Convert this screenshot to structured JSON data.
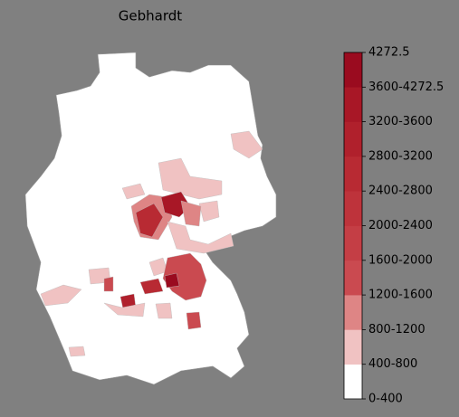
{
  "title": "Gebhardt",
  "legend": {
    "labels": [
      "0-400",
      "400-800",
      "800-1200",
      "1200-1600",
      "1600-2000",
      "2000-2400",
      "2400-2800",
      "2800-3200",
      "3200-3600",
      "3600-4272.5",
      "4272.5"
    ],
    "colors": [
      "#ffffff",
      "#f0c2c2",
      "#de8585",
      "#ca4a50",
      "#c43e45",
      "#be333b",
      "#b82a33",
      "#b0202c",
      "#a81726",
      "#9a0b1f"
    ]
  }
}
